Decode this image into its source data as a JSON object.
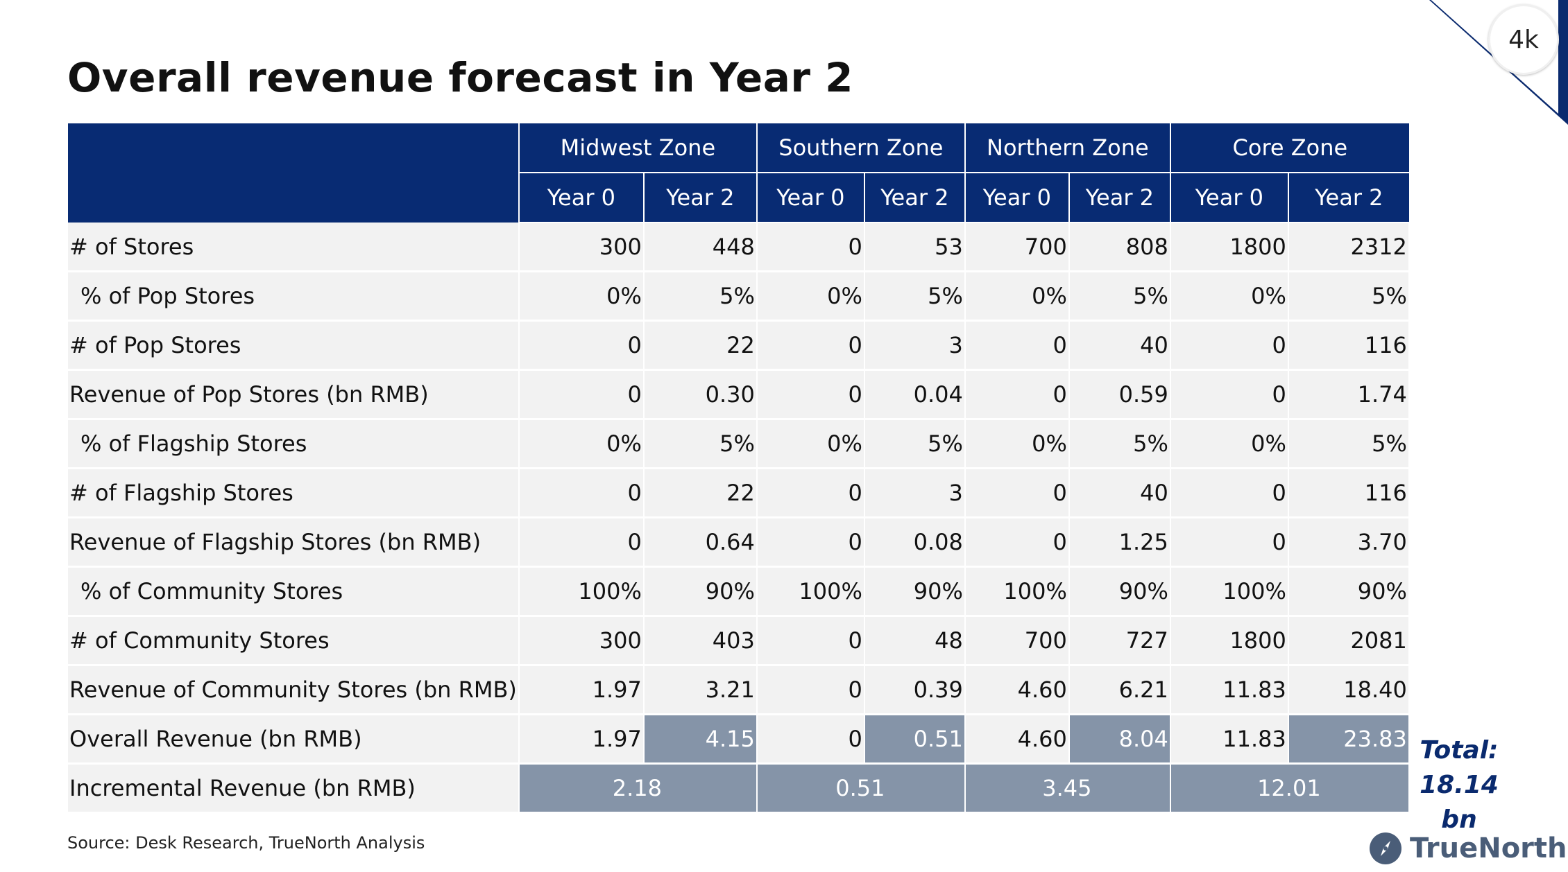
{
  "title": "Overall revenue forecast in Year 2",
  "badge": "4k",
  "zones": [
    "Midwest Zone",
    "Southern Zone",
    "Northern Zone",
    "Core Zone"
  ],
  "years": [
    "Year 0",
    "Year 2",
    "Year 0",
    "Year 2",
    "Year 0",
    "Year 2",
    "Year 0",
    "Year 2"
  ],
  "rows": [
    {
      "label": "# of Stores",
      "values": [
        "300",
        "448",
        "0",
        "53",
        "700",
        "808",
        "1800",
        "2312"
      ]
    },
    {
      "label": "% of Pop Stores",
      "values": [
        "0%",
        "5%",
        "0%",
        "5%",
        "0%",
        "5%",
        "0%",
        "5%"
      ]
    },
    {
      "label": "# of Pop Stores",
      "values": [
        "0",
        "22",
        "0",
        "3",
        "0",
        "40",
        "0",
        "116"
      ]
    },
    {
      "label": "Revenue of Pop Stores (bn RMB)",
      "values": [
        "0",
        "0.30",
        "0",
        "0.04",
        "0",
        "0.59",
        "0",
        "1.74"
      ]
    },
    {
      "label": "% of Flagship Stores",
      "values": [
        "0%",
        "5%",
        "0%",
        "5%",
        "0%",
        "5%",
        "0%",
        "5%"
      ]
    },
    {
      "label": "# of Flagship Stores",
      "values": [
        "0",
        "22",
        "0",
        "3",
        "0",
        "40",
        "0",
        "116"
      ]
    },
    {
      "label": "Revenue of Flagship Stores (bn RMB)",
      "values": [
        "0",
        "0.64",
        "0",
        "0.08",
        "0",
        "1.25",
        "0",
        "3.70"
      ]
    },
    {
      "label": "% of Community Stores",
      "values": [
        "100%",
        "90%",
        "100%",
        "90%",
        "100%",
        "90%",
        "100%",
        "90%"
      ]
    },
    {
      "label": "# of Community Stores",
      "values": [
        "300",
        "403",
        "0",
        "48",
        "700",
        "727",
        "1800",
        "2081"
      ]
    },
    {
      "label": "Revenue of Community Stores (bn RMB)",
      "values": [
        "1.97",
        "3.21",
        "0",
        "0.39",
        "4.60",
        "6.21",
        "11.83",
        "18.40"
      ]
    },
    {
      "label": "Overall Revenue (bn RMB)",
      "values": [
        "1.97",
        "4.15",
        "0",
        "0.51",
        "4.60",
        "8.04",
        "11.83",
        "23.83"
      ]
    }
  ],
  "incremental": {
    "label": "Incremental Revenue (bn RMB)",
    "values": [
      "2.18",
      "0.51",
      "3.45",
      "12.01"
    ]
  },
  "total": {
    "line1": "Total:",
    "line2": "18.14 bn"
  },
  "source": "Source: Desk Research, TrueNorth Analysis",
  "logo": {
    "text": "TrueNorth",
    "icon": "compass-icon"
  },
  "colors": {
    "header": "#082b73",
    "highlight": "#8594a8",
    "row": "#f2f2f2",
    "total_text": "#0a2a6e"
  }
}
